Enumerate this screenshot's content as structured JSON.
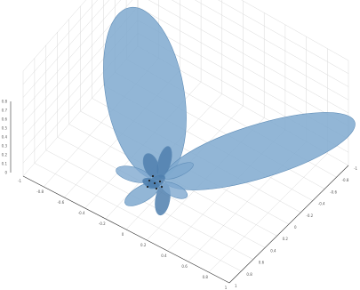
{
  "colors": {
    "lobe_fill": "#7fa9cf",
    "lobe_edge": "#5f8db8",
    "inner_lobe": "#4f7fae",
    "grid": "#d9d9d9",
    "axis": "#333333",
    "marker": "#1f1f1f"
  },
  "chart_data": {
    "type": "3d-surface",
    "title": "",
    "xlabel": "",
    "ylabel": "",
    "zlabel": "",
    "grid": true,
    "legend": "none",
    "lobes": [
      {
        "name": "",
        "direction": "up-left",
        "relative_size": 1.0
      },
      {
        "name": "",
        "direction": "right",
        "relative_size": 0.95
      },
      {
        "name": "",
        "direction": "down-left",
        "relative_size": 0.18
      },
      {
        "name": "",
        "direction": "left",
        "relative_size": 0.15
      },
      {
        "name": "",
        "direction": "down",
        "relative_size": 0.14
      },
      {
        "name": "",
        "direction": "up",
        "relative_size": 0.13
      },
      {
        "name": "",
        "direction": "down-right",
        "relative_size": 0.12
      }
    ],
    "z_ticks": [
      "0.8",
      "0.7",
      "0.6",
      "0.5",
      "0.4",
      "0.3",
      "0.2",
      "0.1",
      "0"
    ],
    "x_ticks": [
      "-1",
      "-0.8",
      "-0.6",
      "-0.4",
      "-0.2",
      "0",
      "0.2",
      "0.4",
      "0.6",
      "0.8",
      "1"
    ],
    "y_ticks": [
      "1",
      "0.8",
      "0.6",
      "0.4",
      "0.2",
      "0",
      "-0.2",
      "-0.4",
      "-0.6",
      "-0.8",
      "-1"
    ]
  }
}
